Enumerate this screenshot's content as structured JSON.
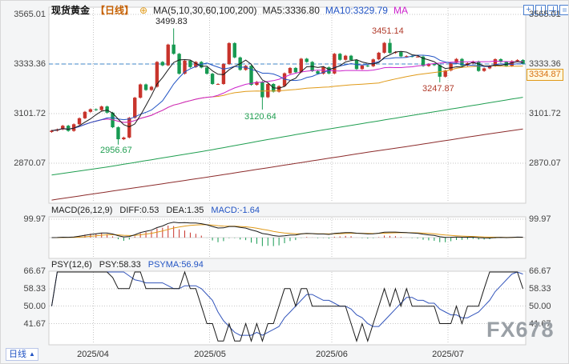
{
  "header": {
    "symbol": "现货黄金",
    "period": "【日线】",
    "settings_icon": "⊕",
    "ma_group": "MA(5,10,30,60,100,200)",
    "ma5": "MA5:3336.80",
    "ma10": "MA10:3329.79",
    "ma_extra": "MA"
  },
  "toolbar": {
    "plus": "+"
  },
  "current_price": "3334.87",
  "annotations": {
    "high1": "3499.83",
    "high2": "3451.14",
    "low1": "2956.67",
    "low2": "3120.64",
    "low3": "3247.87"
  },
  "macd": {
    "header": "MACD(26,12,9)",
    "diff": "DIFF:0.53",
    "dea": "DEA:1.35",
    "macd": "MACD:-1.64",
    "axis": "99.97"
  },
  "psy": {
    "header": "PSY(12,6)",
    "psy": "PSY:58.33",
    "psyma": "PSYMA:56.94",
    "axis": [
      "66.67",
      "58.33",
      "50.00",
      "41.67"
    ]
  },
  "time_axis": [
    "2025/04",
    "2025/05",
    "2025/06",
    "2025/07"
  ],
  "period_button": {
    "label": "日线",
    "arrow": "▲"
  },
  "watermark": "FX678",
  "colors": {
    "candle_up": "#c8342c",
    "candle_down": "#179a52",
    "ma5": "#1a1a1a",
    "ma10": "#2254c4",
    "ma30": "#cc22cc",
    "ma60": "#e09a18",
    "ma100": "#1f9e50",
    "ma200": "#8c2b2b",
    "diff_line": "#1a1a1a",
    "dea_line": "#e09a18",
    "psy_line": "#1a1a1a",
    "psyma_line": "#3355bb",
    "accent_blue": "#4a7fd0",
    "badge_orange": "#d87010",
    "prev_close_blue": "#3f87c9",
    "grid": "#c6c6c6"
  },
  "chart_data": {
    "type": "candlestick",
    "title": "现货黄金【日线】",
    "legend": [
      "MA5",
      "MA10",
      "MA30",
      "MA60",
      "MA100",
      "MA200"
    ],
    "price_axis_values": [
      3565.01,
      3333.36,
      3101.72,
      2870.07
    ],
    "prev_close_line": 3333.36,
    "first_open": 3016,
    "closes": [
      3022,
      3028,
      3045,
      3021,
      3052,
      3080,
      3110,
      3122,
      3118,
      3135,
      3106,
      3038,
      2982,
      2990,
      3082,
      3176,
      3238,
      3212,
      3227,
      3343,
      3327,
      3424,
      3381,
      3288,
      3349,
      3319,
      3343,
      3317,
      3288,
      3240,
      3240,
      3333,
      3431,
      3364,
      3306,
      3325,
      3236,
      3250,
      3178,
      3240,
      3204,
      3230,
      3290,
      3315,
      3295,
      3358,
      3343,
      3300,
      3288,
      3318,
      3289,
      3381,
      3353,
      3372,
      3352,
      3310,
      3326,
      3323,
      3355,
      3386,
      3432,
      3385,
      3389,
      3369,
      3370,
      3368,
      3368,
      3324,
      3333,
      3328,
      3274,
      3303,
      3339,
      3357,
      3326,
      3337,
      3345,
      3301,
      3313,
      3324,
      3356,
      3343,
      3324,
      3347,
      3352,
      3335
    ],
    "extremes": {
      "12": {
        "low": 2956.67
      },
      "22": {
        "high": 3499.83
      },
      "38": {
        "low": 3120.64
      },
      "61": {
        "high": 3451.14
      },
      "70": {
        "low": 3247.87
      }
    },
    "month_start_indices": [
      8,
      29,
      51,
      72
    ],
    "ma_windows": [
      5,
      10,
      30,
      60
    ],
    "ma100_waypoints": [
      2815,
      2850,
      2890,
      2930,
      2975,
      3018,
      3058,
      3098,
      3138,
      3178
    ],
    "ma200_waypoints": [
      2698,
      2734,
      2770,
      2806,
      2844,
      2882,
      2920,
      2956,
      2994,
      3030
    ],
    "macd_axis_value": 99.97,
    "psy_axis_values": [
      66.67,
      58.33,
      50.0,
      41.67
    ],
    "indicators": {
      "ma5": 3336.8,
      "ma10": 3329.79,
      "diff": 0.53,
      "dea": 1.35,
      "macd": -1.64,
      "psy": 58.33,
      "psyma": 56.94,
      "last_price": 3334.87
    }
  }
}
